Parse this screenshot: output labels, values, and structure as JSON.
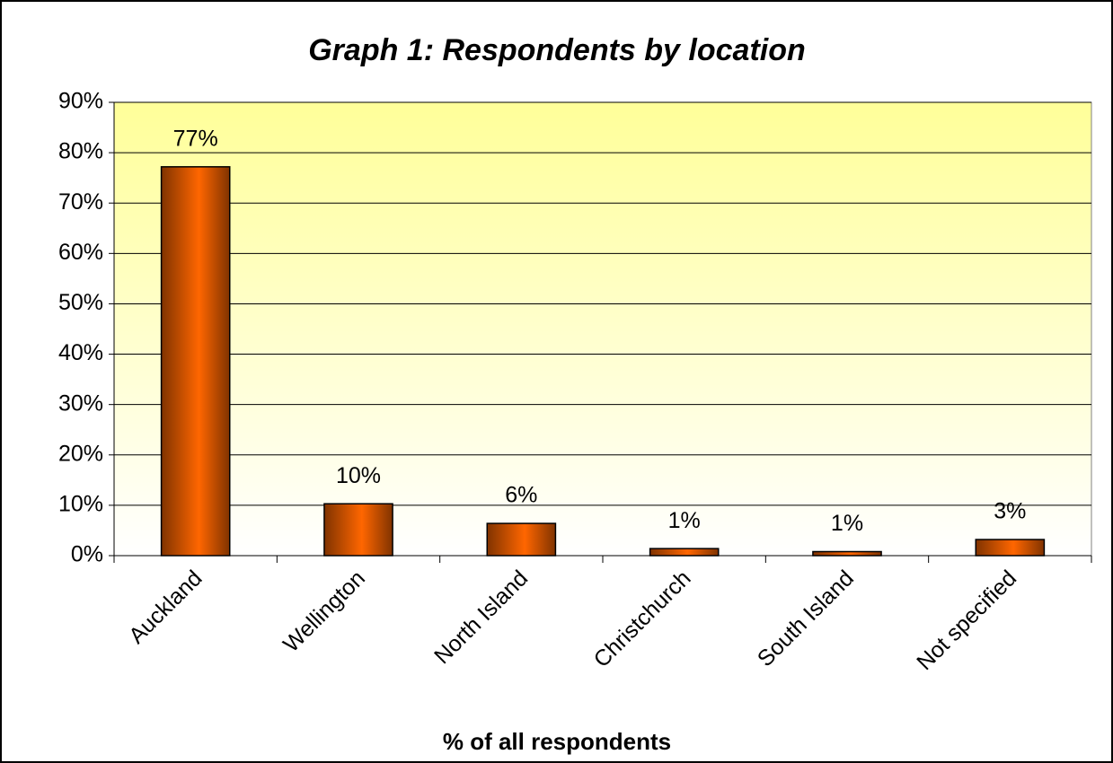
{
  "chart_data": {
    "type": "bar",
    "title": "Graph 1: Respondents by location",
    "x_label": "% of all respondents",
    "categories": [
      "Auckland",
      "Wellington",
      "North Island",
      "Christchurch",
      "South Island",
      "Not specified"
    ],
    "values": [
      77.2,
      10.3,
      6.4,
      1.4,
      0.8,
      3.2
    ],
    "value_labels": [
      "77%",
      "10%",
      "6%",
      "1%",
      "1%",
      "3%"
    ],
    "color": "#ff6600",
    "ylim": [
      0,
      90
    ],
    "yticks": [
      {
        "value": 0,
        "label": "0%"
      },
      {
        "value": 10,
        "label": "10%"
      },
      {
        "value": 20,
        "label": "20%"
      },
      {
        "value": 30,
        "label": "30%"
      },
      {
        "value": 40,
        "label": "40%"
      },
      {
        "value": 50,
        "label": "50%"
      },
      {
        "value": 60,
        "label": "60%"
      },
      {
        "value": 70,
        "label": "70%"
      },
      {
        "value": 80,
        "label": "80%"
      },
      {
        "value": 90,
        "label": "90%"
      }
    ],
    "grid": true
  }
}
